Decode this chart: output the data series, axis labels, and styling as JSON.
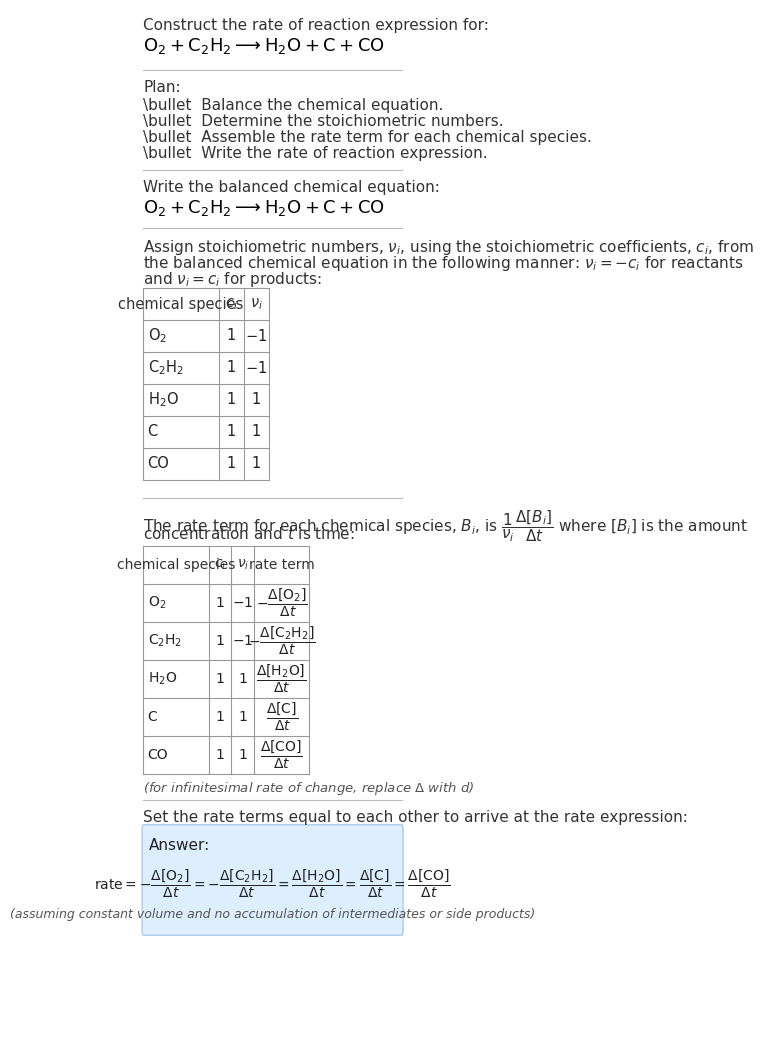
{
  "bg_color": "#ffffff",
  "text_color": "#000000",
  "title_line1": "Construct the rate of reaction expression for:",
  "title_line2_latex": "$\\mathrm{O_2 + C_2H_2 \\longrightarrow H_2O + C + CO}$",
  "plan_header": "Plan:",
  "plan_items": [
    "\\bullet  Balance the chemical equation.",
    "\\bullet  Determine the stoichiometric numbers.",
    "\\bullet  Assemble the rate term for each chemical species.",
    "\\bullet  Write the rate of reaction expression."
  ],
  "balanced_header": "Write the balanced chemical equation:",
  "balanced_eq_latex": "$\\mathrm{O_2 + C_2H_2 \\longrightarrow H_2O + C + CO}$",
  "stoich_text1": "Assign stoichiometric numbers, $\\nu_i$, using the stoichiometric coefficients, $c_i$, from",
  "stoich_text2": "the balanced chemical equation in the following manner: $\\nu_i = -c_i$ for reactants",
  "stoich_text3": "and $\\nu_i = c_i$ for products:",
  "table1_headers": [
    "chemical species",
    "$c_i$",
    "$\\nu_i$"
  ],
  "table1_rows": [
    [
      "$\\mathrm{O_2}$",
      "1",
      "$-1$"
    ],
    [
      "$\\mathrm{C_2H_2}$",
      "1",
      "$-1$"
    ],
    [
      "$\\mathrm{H_2O}$",
      "1",
      "1"
    ],
    [
      "C",
      "1",
      "1"
    ],
    [
      "CO",
      "1",
      "1"
    ]
  ],
  "rate_term_text1": "The rate term for each chemical species, $B_i$, is $\\dfrac{1}{\\nu_i}\\dfrac{\\Delta[B_i]}{\\Delta t}$ where $[B_i]$ is the amount",
  "rate_term_text2": "concentration and $t$ is time:",
  "table2_headers": [
    "chemical species",
    "$c_i$",
    "$\\nu_i$",
    "rate term"
  ],
  "table2_rows": [
    [
      "$\\mathrm{O_2}$",
      "1",
      "$-1$",
      "$-\\dfrac{\\Delta[\\mathrm{O_2}]}{\\Delta t}$"
    ],
    [
      "$\\mathrm{C_2H_2}$",
      "1",
      "$-1$",
      "$-\\dfrac{\\Delta[\\mathrm{C_2H_2}]}{\\Delta t}$"
    ],
    [
      "$\\mathrm{H_2O}$",
      "1",
      "1",
      "$\\dfrac{\\Delta[\\mathrm{H_2O}]}{\\Delta t}$"
    ],
    [
      "C",
      "1",
      "1",
      "$\\dfrac{\\Delta[\\mathrm{C}]}{\\Delta t}$"
    ],
    [
      "CO",
      "1",
      "1",
      "$\\dfrac{\\Delta[\\mathrm{CO}]}{\\Delta t}$"
    ]
  ],
  "infinitesimal_note": "(for infinitesimal rate of change, replace $\\Delta$ with $d$)",
  "set_equal_text": "Set the rate terms equal to each other to arrive at the rate expression:",
  "answer_box_color": "#ddeeff",
  "answer_label": "Answer:",
  "answer_eq_latex": "$\\mathrm{rate} = -\\dfrac{\\Delta[\\mathrm{O_2}]}{\\Delta t} = -\\dfrac{\\Delta[\\mathrm{C_2H_2}]}{\\Delta t} = \\dfrac{\\Delta[\\mathrm{H_2O}]}{\\Delta t} = \\dfrac{\\Delta[\\mathrm{C}]}{\\Delta t} = \\dfrac{\\Delta[\\mathrm{CO}]}{\\Delta t}$",
  "answer_footnote": "(assuming constant volume and no accumulation of intermediates or side products)"
}
